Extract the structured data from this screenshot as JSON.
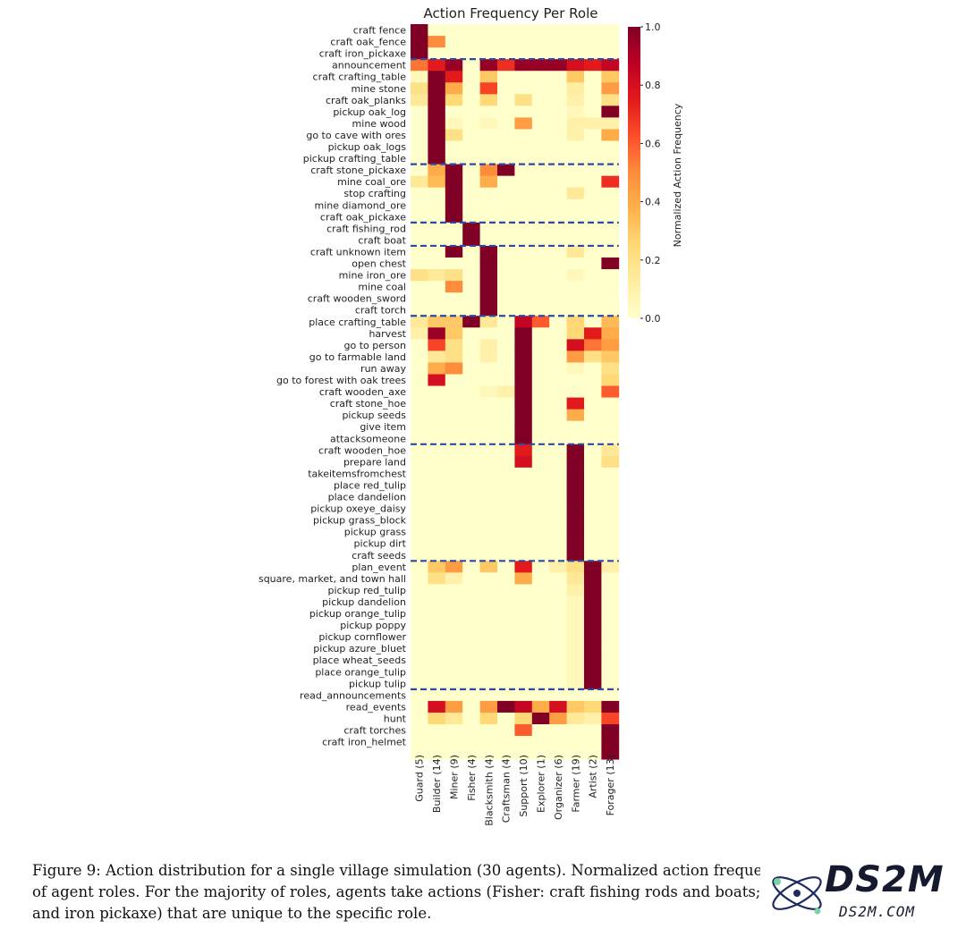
{
  "chart_data": {
    "type": "heatmap",
    "title": "Action Frequency Per Role",
    "colorbar_label": "Normalized Action Frequency",
    "colorbar_ticks": [
      "1.0",
      "0.8",
      "0.6",
      "0.4",
      "0.2",
      "0.0"
    ],
    "vmin": 0.0,
    "vmax": 1.0,
    "colormap": "YlOrRd",
    "columns": [
      "Guard (5)",
      "Builder (14)",
      "Miner (9)",
      "Fisher (4)",
      "Blacksmith (4)",
      "Craftsman (4)",
      "Support (10)",
      "Explorer (1)",
      "Organizer (6)",
      "Farmer (19)",
      "Artist (2)",
      "Forager (13)"
    ],
    "rows": [
      "craft fence",
      "craft oak_fence",
      "craft iron_pickaxe",
      "announcement",
      "craft crafting_table",
      "mine stone",
      "craft oak_planks",
      "pickup oak_log",
      "mine wood",
      "go to cave with ores",
      "pickup oak_logs",
      "pickup crafting_table",
      "craft stone_pickaxe",
      "mine coal_ore",
      "stop crafting",
      "mine diamond_ore",
      "craft oak_pickaxe",
      "craft fishing_rod",
      "craft boat",
      "craft unknown item",
      "open chest",
      "mine iron_ore",
      "mine coal",
      "craft wooden_sword",
      "craft torch",
      "place crafting_table",
      "harvest",
      "go to person",
      "go to farmable land",
      "run away",
      "go to forest with oak trees",
      "craft wooden_axe",
      "craft stone_hoe",
      "pickup seeds",
      "give item",
      "attacksomeone",
      "craft wooden_hoe",
      "prepare land",
      "takeitemsfromchest",
      "place red_tulip",
      "place dandelion",
      "pickup oxeye_daisy",
      "pickup grass_block",
      "pickup grass",
      "pickup dirt",
      "craft seeds",
      "plan_event",
      "square, market, and town hall",
      "pickup red_tulip",
      "pickup dandelion",
      "pickup orange_tulip",
      "pickup poppy",
      "pickup cornflower",
      "pickup azure_bluet",
      "place wheat_seeds",
      "place orange_tulip",
      "pickup tulip",
      "read_announcements",
      "read_events",
      "hunt",
      "craft torches",
      "craft iron_helmet"
    ],
    "group_separators_after_row": [
      2,
      11,
      16,
      18,
      24,
      35,
      45,
      56
    ],
    "values": [
      [
        1.0,
        0.0,
        0.0,
        0.0,
        0.0,
        0.0,
        0.0,
        0.0,
        0.0,
        0.0,
        0.0,
        0.0
      ],
      [
        1.0,
        0.5,
        0.0,
        0.0,
        0.0,
        0.0,
        0.0,
        0.0,
        0.0,
        0.0,
        0.0,
        0.0
      ],
      [
        1.0,
        0.0,
        0.0,
        0.0,
        0.0,
        0.0,
        0.0,
        0.0,
        0.0,
        0.0,
        0.0,
        0.0
      ],
      [
        0.55,
        0.75,
        0.95,
        0.0,
        0.95,
        0.7,
        0.95,
        0.95,
        0.95,
        0.8,
        0.75,
        0.85
      ],
      [
        0.05,
        1.0,
        0.75,
        0.0,
        0.3,
        0.0,
        0.0,
        0.0,
        0.0,
        0.3,
        0.0,
        0.3
      ],
      [
        0.2,
        1.0,
        0.4,
        0.0,
        0.65,
        0.0,
        0.0,
        0.0,
        0.0,
        0.12,
        0.0,
        0.45
      ],
      [
        0.15,
        1.0,
        0.25,
        0.0,
        0.25,
        0.0,
        0.2,
        0.0,
        0.0,
        0.1,
        0.0,
        0.2
      ],
      [
        0.0,
        1.0,
        0.0,
        0.0,
        0.0,
        0.0,
        0.0,
        0.0,
        0.0,
        0.05,
        0.0,
        1.0
      ],
      [
        0.0,
        1.0,
        0.05,
        0.0,
        0.05,
        0.0,
        0.45,
        0.0,
        0.0,
        0.1,
        0.1,
        0.1
      ],
      [
        0.0,
        1.0,
        0.2,
        0.0,
        0.0,
        0.0,
        0.0,
        0.0,
        0.0,
        0.1,
        0.0,
        0.4
      ],
      [
        0.0,
        1.0,
        0.0,
        0.0,
        0.0,
        0.0,
        0.0,
        0.0,
        0.0,
        0.0,
        0.0,
        0.0
      ],
      [
        0.0,
        1.0,
        0.0,
        0.0,
        0.0,
        0.0,
        0.0,
        0.0,
        0.0,
        0.0,
        0.0,
        0.0
      ],
      [
        0.0,
        0.4,
        1.0,
        0.0,
        0.5,
        1.0,
        0.0,
        0.0,
        0.0,
        0.0,
        0.0,
        0.0
      ],
      [
        0.15,
        0.35,
        1.0,
        0.0,
        0.4,
        0.0,
        0.0,
        0.0,
        0.0,
        0.0,
        0.0,
        0.7
      ],
      [
        0.0,
        0.0,
        1.0,
        0.0,
        0.0,
        0.0,
        0.0,
        0.0,
        0.0,
        0.15,
        0.0,
        0.0
      ],
      [
        0.0,
        0.0,
        1.0,
        0.0,
        0.0,
        0.0,
        0.0,
        0.0,
        0.0,
        0.0,
        0.0,
        0.0
      ],
      [
        0.0,
        0.0,
        1.0,
        0.0,
        0.0,
        0.0,
        0.0,
        0.0,
        0.0,
        0.0,
        0.0,
        0.0
      ],
      [
        0.0,
        0.0,
        0.0,
        1.0,
        0.0,
        0.0,
        0.0,
        0.0,
        0.0,
        0.0,
        0.0,
        0.0
      ],
      [
        0.0,
        0.0,
        0.0,
        1.0,
        0.0,
        0.0,
        0.0,
        0.0,
        0.0,
        0.0,
        0.0,
        0.0
      ],
      [
        0.0,
        0.0,
        1.0,
        0.0,
        1.0,
        0.0,
        0.0,
        0.0,
        0.0,
        0.15,
        0.0,
        0.0
      ],
      [
        0.0,
        0.0,
        0.0,
        0.0,
        1.0,
        0.0,
        0.0,
        0.0,
        0.0,
        0.0,
        0.0,
        1.0
      ],
      [
        0.2,
        0.15,
        0.2,
        0.0,
        1.0,
        0.0,
        0.0,
        0.0,
        0.0,
        0.05,
        0.0,
        0.0
      ],
      [
        0.0,
        0.0,
        0.5,
        0.0,
        1.0,
        0.0,
        0.0,
        0.0,
        0.0,
        0.0,
        0.0,
        0.0
      ],
      [
        0.0,
        0.0,
        0.0,
        0.0,
        1.0,
        0.0,
        0.0,
        0.0,
        0.0,
        0.0,
        0.0,
        0.0
      ],
      [
        0.0,
        0.0,
        0.0,
        0.0,
        1.0,
        0.0,
        0.0,
        0.0,
        0.0,
        0.0,
        0.0,
        0.0
      ],
      [
        0.15,
        0.3,
        0.3,
        1.0,
        0.15,
        0.0,
        0.85,
        0.6,
        0.0,
        0.25,
        0.0,
        0.35
      ],
      [
        0.1,
        0.95,
        0.3,
        0.0,
        0.0,
        0.0,
        1.0,
        0.0,
        0.0,
        0.25,
        0.75,
        0.4
      ],
      [
        0.0,
        0.65,
        0.2,
        0.0,
        0.1,
        0.0,
        1.0,
        0.0,
        0.0,
        0.8,
        0.55,
        0.45
      ],
      [
        0.0,
        0.15,
        0.2,
        0.0,
        0.1,
        0.0,
        1.0,
        0.0,
        0.0,
        0.45,
        0.2,
        0.3
      ],
      [
        0.0,
        0.4,
        0.5,
        0.0,
        0.0,
        0.0,
        1.0,
        0.0,
        0.0,
        0.05,
        0.0,
        0.2
      ],
      [
        0.0,
        0.8,
        0.0,
        0.0,
        0.0,
        0.0,
        1.0,
        0.0,
        0.0,
        0.0,
        0.0,
        0.25
      ],
      [
        0.0,
        0.0,
        0.0,
        0.0,
        0.05,
        0.1,
        1.0,
        0.0,
        0.0,
        0.0,
        0.0,
        0.6
      ],
      [
        0.0,
        0.0,
        0.0,
        0.0,
        0.0,
        0.0,
        1.0,
        0.0,
        0.0,
        0.75,
        0.0,
        0.0
      ],
      [
        0.0,
        0.0,
        0.0,
        0.0,
        0.0,
        0.0,
        1.0,
        0.0,
        0.0,
        0.4,
        0.0,
        0.0
      ],
      [
        0.0,
        0.0,
        0.0,
        0.0,
        0.0,
        0.0,
        1.0,
        0.0,
        0.0,
        0.0,
        0.0,
        0.0
      ],
      [
        0.0,
        0.0,
        0.0,
        0.0,
        0.0,
        0.0,
        1.0,
        0.0,
        0.0,
        0.0,
        0.0,
        0.0
      ],
      [
        0.0,
        0.0,
        0.0,
        0.0,
        0.0,
        0.0,
        0.75,
        0.0,
        0.0,
        1.0,
        0.0,
        0.15
      ],
      [
        0.0,
        0.0,
        0.0,
        0.0,
        0.0,
        0.0,
        0.8,
        0.0,
        0.0,
        1.0,
        0.0,
        0.2
      ],
      [
        0.0,
        0.0,
        0.0,
        0.0,
        0.0,
        0.0,
        0.0,
        0.0,
        0.0,
        1.0,
        0.0,
        0.0
      ],
      [
        0.0,
        0.0,
        0.0,
        0.0,
        0.0,
        0.0,
        0.0,
        0.0,
        0.0,
        1.0,
        0.0,
        0.0
      ],
      [
        0.0,
        0.0,
        0.0,
        0.0,
        0.0,
        0.0,
        0.0,
        0.0,
        0.0,
        1.0,
        0.0,
        0.0
      ],
      [
        0.0,
        0.0,
        0.0,
        0.0,
        0.0,
        0.0,
        0.0,
        0.0,
        0.0,
        1.0,
        0.0,
        0.0
      ],
      [
        0.0,
        0.0,
        0.0,
        0.0,
        0.0,
        0.0,
        0.0,
        0.0,
        0.0,
        1.0,
        0.0,
        0.0
      ],
      [
        0.0,
        0.0,
        0.0,
        0.0,
        0.0,
        0.0,
        0.0,
        0.0,
        0.0,
        1.0,
        0.0,
        0.0
      ],
      [
        0.0,
        0.0,
        0.0,
        0.0,
        0.0,
        0.0,
        0.0,
        0.0,
        0.0,
        1.0,
        0.0,
        0.0
      ],
      [
        0.0,
        0.0,
        0.0,
        0.0,
        0.0,
        0.0,
        0.0,
        0.0,
        0.0,
        1.0,
        0.0,
        0.0
      ],
      [
        0.0,
        0.3,
        0.45,
        0.0,
        0.3,
        0.0,
        0.75,
        0.0,
        0.1,
        0.2,
        1.0,
        0.1
      ],
      [
        0.0,
        0.2,
        0.1,
        0.0,
        0.0,
        0.0,
        0.4,
        0.0,
        0.0,
        0.15,
        1.0,
        0.0
      ],
      [
        0.0,
        0.0,
        0.0,
        0.0,
        0.0,
        0.0,
        0.0,
        0.0,
        0.0,
        0.1,
        1.0,
        0.0
      ],
      [
        0.0,
        0.0,
        0.0,
        0.0,
        0.0,
        0.0,
        0.0,
        0.0,
        0.0,
        0.05,
        1.0,
        0.0
      ],
      [
        0.0,
        0.0,
        0.0,
        0.0,
        0.0,
        0.0,
        0.0,
        0.0,
        0.0,
        0.05,
        1.0,
        0.0
      ],
      [
        0.0,
        0.0,
        0.0,
        0.0,
        0.0,
        0.0,
        0.0,
        0.0,
        0.0,
        0.05,
        1.0,
        0.0
      ],
      [
        0.0,
        0.0,
        0.0,
        0.0,
        0.0,
        0.0,
        0.0,
        0.0,
        0.0,
        0.05,
        1.0,
        0.0
      ],
      [
        0.0,
        0.0,
        0.0,
        0.0,
        0.0,
        0.0,
        0.0,
        0.0,
        0.0,
        0.05,
        1.0,
        0.0
      ],
      [
        0.0,
        0.0,
        0.0,
        0.0,
        0.0,
        0.0,
        0.0,
        0.0,
        0.0,
        0.05,
        1.0,
        0.0
      ],
      [
        0.0,
        0.0,
        0.0,
        0.0,
        0.0,
        0.0,
        0.0,
        0.0,
        0.0,
        0.05,
        1.0,
        0.0
      ],
      [
        0.0,
        0.0,
        0.0,
        0.0,
        0.0,
        0.0,
        0.0,
        0.0,
        0.0,
        0.05,
        1.0,
        0.0
      ],
      [
        0.0,
        0.0,
        0.0,
        0.0,
        0.0,
        0.0,
        0.0,
        0.0,
        0.0,
        0.0,
        0.0,
        0.0
      ],
      [
        0.0,
        0.8,
        0.45,
        0.0,
        0.45,
        1.0,
        0.85,
        0.4,
        0.8,
        0.3,
        0.25,
        1.0
      ],
      [
        0.0,
        0.25,
        0.15,
        0.0,
        0.25,
        0.0,
        0.25,
        1.0,
        0.45,
        0.15,
        0.1,
        0.65
      ],
      [
        0.0,
        0.0,
        0.0,
        0.0,
        0.0,
        0.0,
        0.6,
        0.0,
        0.0,
        0.0,
        0.0,
        1.0
      ],
      [
        0.0,
        0.0,
        0.0,
        0.0,
        0.0,
        0.0,
        0.0,
        0.0,
        0.0,
        0.0,
        0.0,
        1.0
      ],
      [
        0.0,
        0.0,
        0.0,
        0.0,
        0.0,
        0.0,
        0.0,
        0.0,
        0.0,
        0.0,
        0.0,
        1.0
      ]
    ]
  },
  "caption": {
    "line1": "Figure 9: Action distribution for a single village simulation (30 agents). Normalized action frequenc",
    "line2": "of agent roles. For the majority of roles, agents take actions (Fisher: craft fishing rods and boats; Guar",
    "line3": "and iron pickaxe) that are unique to the specific role."
  },
  "watermark": {
    "brand": "DS2M",
    "url": "DS2M.COM"
  },
  "colors": {
    "separator": "#2b4aa8",
    "scale_low": "#ffffcc",
    "scale_high": "#800026"
  }
}
